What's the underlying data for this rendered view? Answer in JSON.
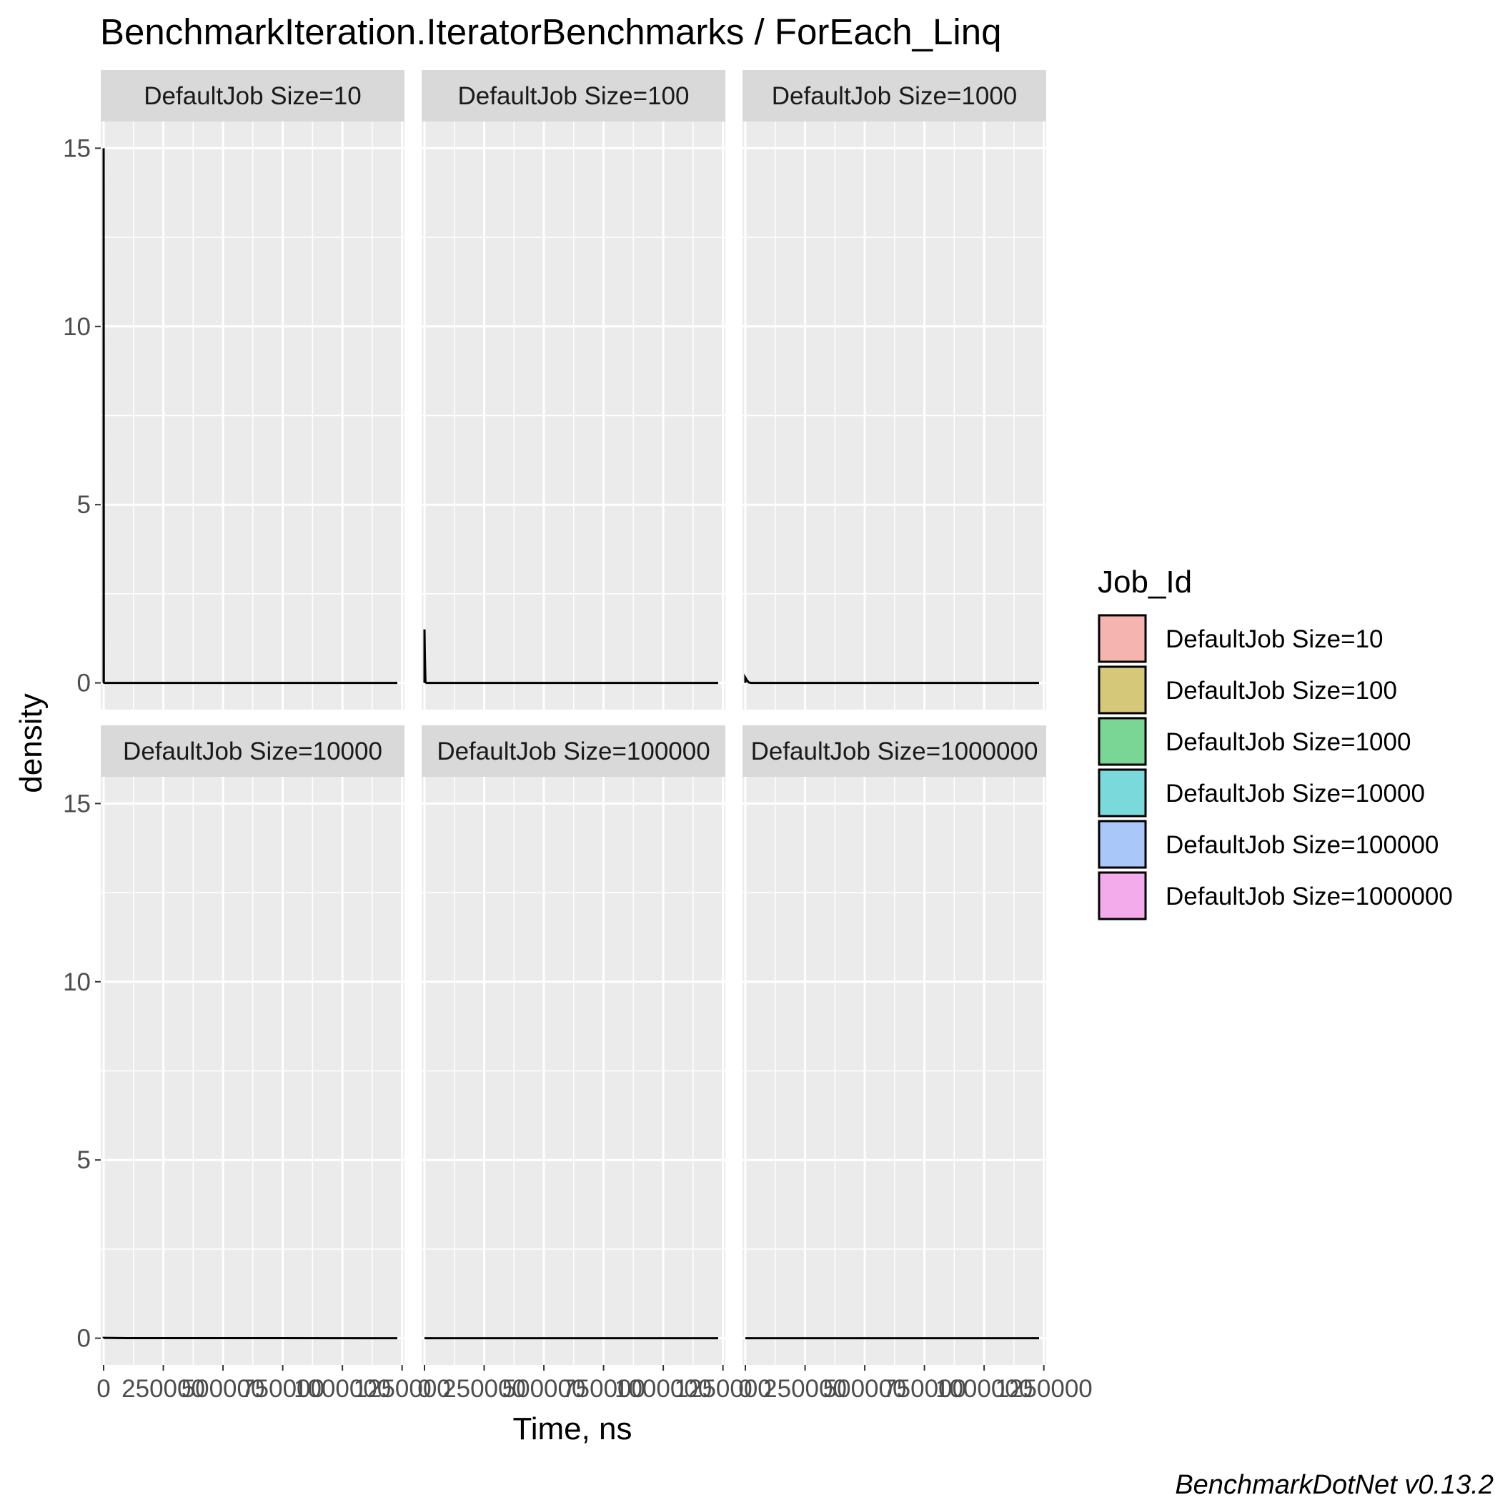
{
  "chart_data": {
    "type": "area",
    "title": "BenchmarkIteration.IteratorBenchmarks / ForEach_Linq",
    "xlabel": "Time, ns",
    "ylabel": "density",
    "caption": "BenchmarkDotNet v0.13.2",
    "xlim": [
      -12000,
      1260000
    ],
    "ylim": [
      -0.75,
      15.75
    ],
    "x_ticks": [
      0,
      250000,
      500000,
      750000,
      1000000,
      1250000
    ],
    "y_ticks": [
      0,
      5,
      10,
      15
    ],
    "grid": true,
    "legend": {
      "title": "Job_Id",
      "position": "right",
      "entries": [
        {
          "label": "DefaultJob Size=10",
          "color": "#F8766D"
        },
        {
          "label": "DefaultJob Size=100",
          "color": "#B79F00"
        },
        {
          "label": "DefaultJob Size=1000",
          "color": "#00BA38"
        },
        {
          "label": "DefaultJob Size=10000",
          "color": "#00BFC4"
        },
        {
          "label": "DefaultJob Size=100000",
          "color": "#619CFF"
        },
        {
          "label": "DefaultJob Size=1000000",
          "color": "#F564E3"
        }
      ]
    },
    "panels": [
      {
        "label": "DefaultJob Size=10",
        "color": "#F8766D",
        "curve": [
          [
            0,
            15.0
          ],
          [
            800,
            0.02
          ],
          [
            2500,
            0
          ],
          [
            1230000,
            0
          ]
        ]
      },
      {
        "label": "DefaultJob Size=100",
        "color": "#B79F00",
        "curve": [
          [
            0,
            1.5
          ],
          [
            1500,
            0.8
          ],
          [
            4000,
            0.02
          ],
          [
            8000,
            0
          ],
          [
            1230000,
            0
          ]
        ]
      },
      {
        "label": "DefaultJob Size=1000",
        "color": "#00BA38",
        "curve": [
          [
            0,
            0.15
          ],
          [
            6000,
            0.08
          ],
          [
            15000,
            0.01
          ],
          [
            25000,
            0
          ],
          [
            1230000,
            0
          ]
        ]
      },
      {
        "label": "DefaultJob Size=10000",
        "color": "#00BFC4",
        "curve": [
          [
            0,
            0.01
          ],
          [
            100000,
            0.003
          ],
          [
            1230000,
            0
          ]
        ]
      },
      {
        "label": "DefaultJob Size=100000",
        "color": "#619CFF",
        "curve": [
          [
            0,
            0
          ],
          [
            1230000,
            0
          ]
        ]
      },
      {
        "label": "DefaultJob Size=1000000",
        "color": "#F564E3",
        "curve": [
          [
            0,
            0
          ],
          [
            1230000,
            0
          ]
        ]
      }
    ]
  }
}
